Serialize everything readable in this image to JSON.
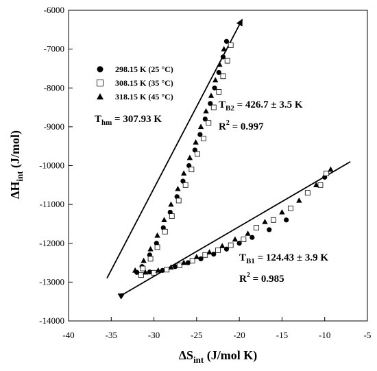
{
  "chart_data": {
    "type": "scatter",
    "xlabel": {
      "main": "ΔS",
      "sub": "int",
      "rest": " (J/mol K)"
    },
    "ylabel": {
      "main": "ΔH",
      "sub": "int",
      "rest": " (J/mol)"
    },
    "xlim": [
      -40,
      -5
    ],
    "ylim": [
      -14000,
      -6000
    ],
    "xticks": [
      -40,
      -35,
      -30,
      -25,
      -20,
      -15,
      -10,
      -5
    ],
    "yticks": [
      -14000,
      -13000,
      -12000,
      -11000,
      -10000,
      -9000,
      -8000,
      -7000,
      -6000
    ],
    "legend_position": "top-left",
    "series": [
      {
        "name": "298.15 K (25 °C)",
        "marker": "filled-circle",
        "branch_upper": [
          [
            -21.5,
            -6800
          ],
          [
            -21.9,
            -7200
          ],
          [
            -22.4,
            -7600
          ],
          [
            -22.9,
            -8000
          ],
          [
            -23.4,
            -8400
          ],
          [
            -24.0,
            -8800
          ],
          [
            -24.6,
            -9200
          ],
          [
            -25.2,
            -9600
          ],
          [
            -25.9,
            -10000
          ],
          [
            -26.6,
            -10400
          ],
          [
            -27.3,
            -10800
          ],
          [
            -28.1,
            -11200
          ],
          [
            -28.9,
            -11600
          ],
          [
            -29.7,
            -12000
          ],
          [
            -30.5,
            -12300
          ],
          [
            -31.4,
            -12600
          ]
        ],
        "branch_lower": [
          [
            -32.0,
            -12750
          ],
          [
            -30.5,
            -12740
          ],
          [
            -29.0,
            -12700
          ],
          [
            -27.5,
            -12600
          ],
          [
            -26.0,
            -12500
          ],
          [
            -24.5,
            -12400
          ],
          [
            -23.0,
            -12280
          ],
          [
            -21.5,
            -12150
          ],
          [
            -20.0,
            -12000
          ],
          [
            -18.5,
            -11850
          ],
          [
            -16.5,
            -11650
          ],
          [
            -14.5,
            -11400
          ],
          [
            -12.0,
            -10700
          ],
          [
            -10.0,
            -10300
          ]
        ]
      },
      {
        "name": "308.15 K (35 °C)",
        "marker": "open-square",
        "branch_upper": [
          [
            -21.0,
            -6900
          ],
          [
            -21.4,
            -7300
          ],
          [
            -21.9,
            -7700
          ],
          [
            -22.4,
            -8100
          ],
          [
            -23.0,
            -8500
          ],
          [
            -23.6,
            -8900
          ],
          [
            -24.2,
            -9300
          ],
          [
            -24.9,
            -9700
          ],
          [
            -25.6,
            -10100
          ],
          [
            -26.3,
            -10500
          ],
          [
            -27.1,
            -10900
          ],
          [
            -27.9,
            -11300
          ],
          [
            -28.7,
            -11700
          ],
          [
            -29.6,
            -12100
          ],
          [
            -30.4,
            -12400
          ],
          [
            -31.3,
            -12650
          ]
        ],
        "branch_lower": [
          [
            -31.5,
            -12820
          ],
          [
            -30.0,
            -12760
          ],
          [
            -28.5,
            -12680
          ],
          [
            -27.0,
            -12570
          ],
          [
            -25.5,
            -12450
          ],
          [
            -24.0,
            -12300
          ],
          [
            -22.5,
            -12180
          ],
          [
            -21.0,
            -12050
          ],
          [
            -19.5,
            -11900
          ],
          [
            -18.0,
            -11600
          ],
          [
            -16.0,
            -11400
          ],
          [
            -14.0,
            -11100
          ],
          [
            -12.0,
            -10700
          ],
          [
            -10.5,
            -10500
          ],
          [
            -9.8,
            -10200
          ]
        ]
      },
      {
        "name": "318.15 K (45 °C)",
        "marker": "filled-triangle",
        "branch_upper": [
          [
            -21.8,
            -7000
          ],
          [
            -22.3,
            -7400
          ],
          [
            -22.8,
            -7800
          ],
          [
            -23.3,
            -8200
          ],
          [
            -23.9,
            -8600
          ],
          [
            -24.5,
            -9000
          ],
          [
            -25.1,
            -9400
          ],
          [
            -25.8,
            -9800
          ],
          [
            -26.5,
            -10200
          ],
          [
            -27.2,
            -10600
          ],
          [
            -28.0,
            -11000
          ],
          [
            -28.8,
            -11400
          ],
          [
            -29.6,
            -11800
          ],
          [
            -30.4,
            -12150
          ],
          [
            -31.2,
            -12450
          ],
          [
            -32.2,
            -12700
          ]
        ],
        "branch_lower": [
          [
            -31.0,
            -12750
          ],
          [
            -29.5,
            -12700
          ],
          [
            -28.0,
            -12620
          ],
          [
            -26.5,
            -12500
          ],
          [
            -25.0,
            -12350
          ],
          [
            -23.5,
            -12230
          ],
          [
            -22.0,
            -12070
          ],
          [
            -20.5,
            -11900
          ],
          [
            -19.0,
            -11750
          ],
          [
            -17.0,
            -11450
          ],
          [
            -15.0,
            -11200
          ],
          [
            -13.0,
            -10900
          ],
          [
            -11.0,
            -10500
          ],
          [
            -9.3,
            -10100
          ]
        ]
      }
    ],
    "fit_lines": [
      {
        "label": "T_B2",
        "from": [
          -35.5,
          -12900
        ],
        "to": [
          -19.7,
          -6250
        ],
        "arrow_end": "to"
      },
      {
        "label": "T_B1",
        "from": [
          -33.5,
          -13300
        ],
        "to": [
          -7.0,
          -9900
        ],
        "arrow_end": "from"
      }
    ],
    "annotations": {
      "thm": {
        "main": "T",
        "sub": "hm",
        "rest": " = 307.93 K"
      },
      "tb2": {
        "main": "T",
        "sub": "B2",
        "rest": " = 426.7 ± 3.5 K"
      },
      "tb2_r2": {
        "main": "R",
        "sup": "2",
        "rest": " = 0.997"
      },
      "tb1": {
        "main": "T",
        "sub": "B1",
        "rest": " = 124.43 ± 3.9 K"
      },
      "tb1_r2": {
        "main": "R",
        "sup": "2",
        "rest": " = 0.985"
      }
    }
  }
}
